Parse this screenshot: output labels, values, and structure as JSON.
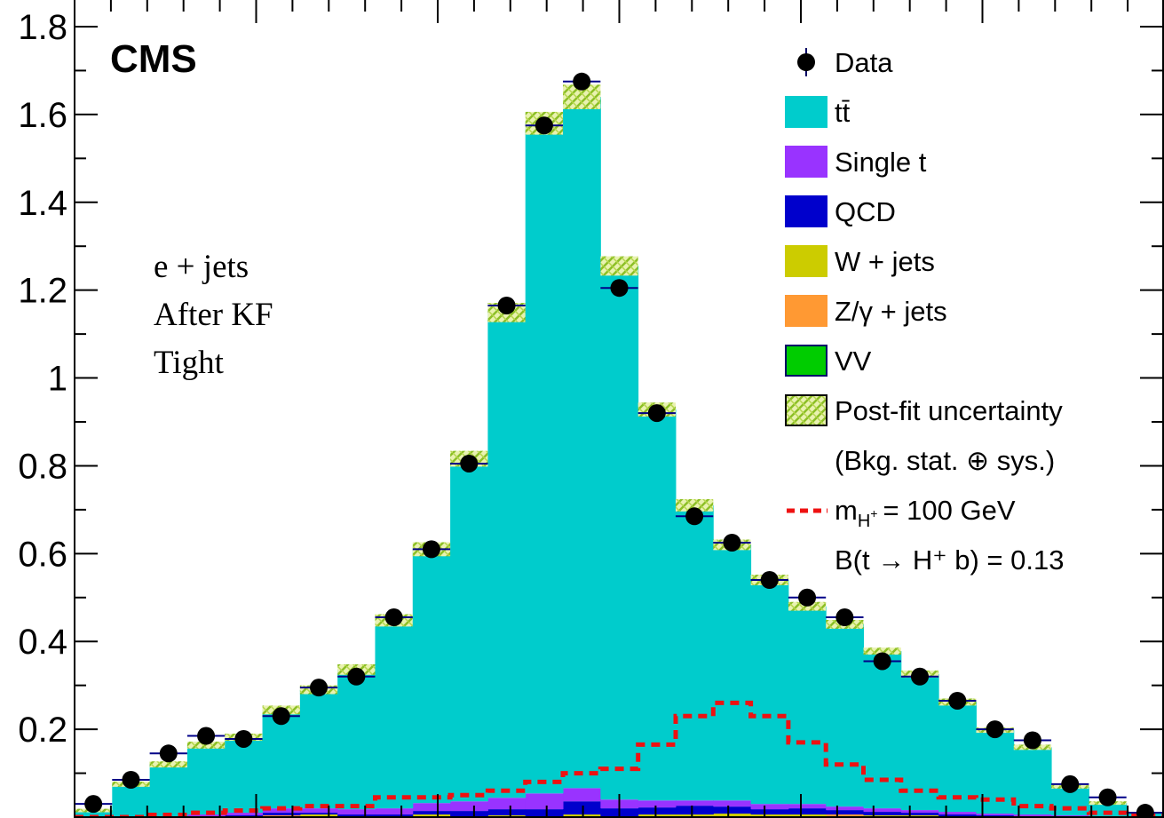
{
  "chart_data": {
    "type": "bar",
    "stacked": true,
    "experiment_label": "CMS",
    "annotations": [
      "e + jets",
      "After KF",
      "Tight"
    ],
    "ylim": [
      0,
      1.8
    ],
    "y_ticks": [
      {
        "value": 0.2,
        "label": "0.2"
      },
      {
        "value": 0.4,
        "label": "0.4"
      },
      {
        "value": 0.6,
        "label": "0.6"
      },
      {
        "value": 0.8,
        "label": "0.8"
      },
      {
        "value": 1.0,
        "label": "1"
      },
      {
        "value": 1.2,
        "label": "1.2"
      },
      {
        "value": 1.4,
        "label": "1.4"
      },
      {
        "value": 1.6,
        "label": "1.6"
      },
      {
        "value": 1.8,
        "label": "1.8"
      }
    ],
    "n_bins": 29,
    "series": [
      {
        "name": "VV",
        "color": "#00cc00",
        "values": [
          0,
          0,
          0,
          0,
          0,
          0,
          0,
          0,
          0,
          0,
          0,
          0,
          0,
          0,
          0,
          0,
          0,
          0,
          0,
          0,
          0,
          0,
          0,
          0,
          0,
          0,
          0,
          0,
          0
        ]
      },
      {
        "name": "Z/γ + jets",
        "color": "#ff9933",
        "values": [
          0,
          0,
          0,
          0,
          0,
          0.004,
          0,
          0.002,
          0,
          0.002,
          0,
          0,
          0,
          0,
          0,
          0,
          0,
          0,
          0,
          0.002,
          0.006,
          0,
          0,
          0,
          0,
          0,
          0,
          0,
          0
        ]
      },
      {
        "name": "W + jets",
        "color": "#cccc00",
        "values": [
          0,
          0,
          0,
          0,
          0,
          0,
          0.006,
          0,
          0,
          0.004,
          0.002,
          0.004,
          0,
          0.006,
          0.002,
          0.006,
          0.006,
          0.008,
          0.006,
          0.004,
          0,
          0.004,
          0.004,
          0,
          0,
          0,
          0,
          0,
          0
        ]
      },
      {
        "name": "QCD",
        "color": "#0000cc",
        "values": [
          0,
          0,
          0,
          0.002,
          0.004,
          0.006,
          0.004,
          0.004,
          0.006,
          0.008,
          0.012,
          0.014,
          0.018,
          0.03,
          0.018,
          0.016,
          0.02,
          0.016,
          0.012,
          0.014,
          0.01,
          0.008,
          0.006,
          0.006,
          0.004,
          0.002,
          0.002,
          0,
          0
        ]
      },
      {
        "name": "Single t",
        "color": "#9933ff",
        "values": [
          0,
          0,
          0.002,
          0.004,
          0.006,
          0.01,
          0.01,
          0.012,
          0.014,
          0.018,
          0.022,
          0.026,
          0.036,
          0.03,
          0.02,
          0.016,
          0.012,
          0.014,
          0.012,
          0.01,
          0.008,
          0.008,
          0.006,
          0.006,
          0.004,
          0.004,
          0.002,
          0.002,
          0
        ]
      },
      {
        "name": "tt̄",
        "color": "#00cccc",
        "values": [
          0.015,
          0.075,
          0.118,
          0.158,
          0.172,
          0.224,
          0.27,
          0.318,
          0.428,
          0.578,
          0.78,
          1.105,
          1.526,
          1.574,
          1.215,
          0.89,
          0.672,
          0.582,
          0.51,
          0.45,
          0.415,
          0.358,
          0.31,
          0.25,
          0.19,
          0.153,
          0.065,
          0.03,
          0.01
        ]
      }
    ],
    "data": {
      "name": "Data",
      "values": [
        0.03,
        0.085,
        0.145,
        0.185,
        0.178,
        0.23,
        0.295,
        0.32,
        0.455,
        0.61,
        0.805,
        1.165,
        1.575,
        1.675,
        1.205,
        0.92,
        0.685,
        0.625,
        0.54,
        0.5,
        0.455,
        0.355,
        0.32,
        0.265,
        0.2,
        0.175,
        0.075,
        0.045,
        0.01
      ]
    },
    "uncertainty": {
      "name": "Post-fit uncertainty",
      "sub_label": "(Bkg. stat. ⊕ sys.)",
      "values": [
        0.004,
        0.006,
        0.007,
        0.008,
        0.008,
        0.01,
        0.01,
        0.012,
        0.014,
        0.016,
        0.018,
        0.022,
        0.026,
        0.028,
        0.022,
        0.016,
        0.014,
        0.012,
        0.012,
        0.01,
        0.01,
        0.008,
        0.008,
        0.008,
        0.006,
        0.006,
        0.004,
        0.004,
        0.002
      ]
    },
    "signal": {
      "name": "m_{H⁺} = 100 GeV",
      "sub_label": "B(t → H⁺ b) = 0.13",
      "color": "#ee1111",
      "values": [
        0,
        0,
        0.005,
        0.01,
        0.015,
        0.02,
        0.025,
        0.025,
        0.045,
        0.045,
        0.05,
        0.06,
        0.08,
        0.1,
        0.11,
        0.165,
        0.23,
        0.26,
        0.23,
        0.17,
        0.12,
        0.085,
        0.06,
        0.045,
        0.04,
        0.025,
        0.02,
        0.01,
        0.005
      ]
    },
    "legend": [
      {
        "label": "Data",
        "kind": "data"
      },
      {
        "label": "tt̄",
        "kind": "box",
        "color": "#00cccc"
      },
      {
        "label": "Single t",
        "kind": "box",
        "color": "#9933ff"
      },
      {
        "label": "QCD",
        "kind": "box",
        "color": "#0000cc"
      },
      {
        "label": "W + jets",
        "kind": "box",
        "color": "#cccc00"
      },
      {
        "label": "Z/γ + jets",
        "kind": "box",
        "color": "#ff9933"
      },
      {
        "label": "VV",
        "kind": "box",
        "color": "#00cc00"
      },
      {
        "label": "Post-fit uncertainty",
        "kind": "hatch"
      },
      {
        "label": "(Bkg. stat. ⊕ sys.)",
        "kind": "none"
      },
      {
        "label": "= 100 GeV",
        "kind": "signal"
      },
      {
        "label": "B(t → H⁺ b) = 0.13",
        "kind": "none"
      }
    ],
    "grid": false,
    "legend_position": "top-right"
  }
}
